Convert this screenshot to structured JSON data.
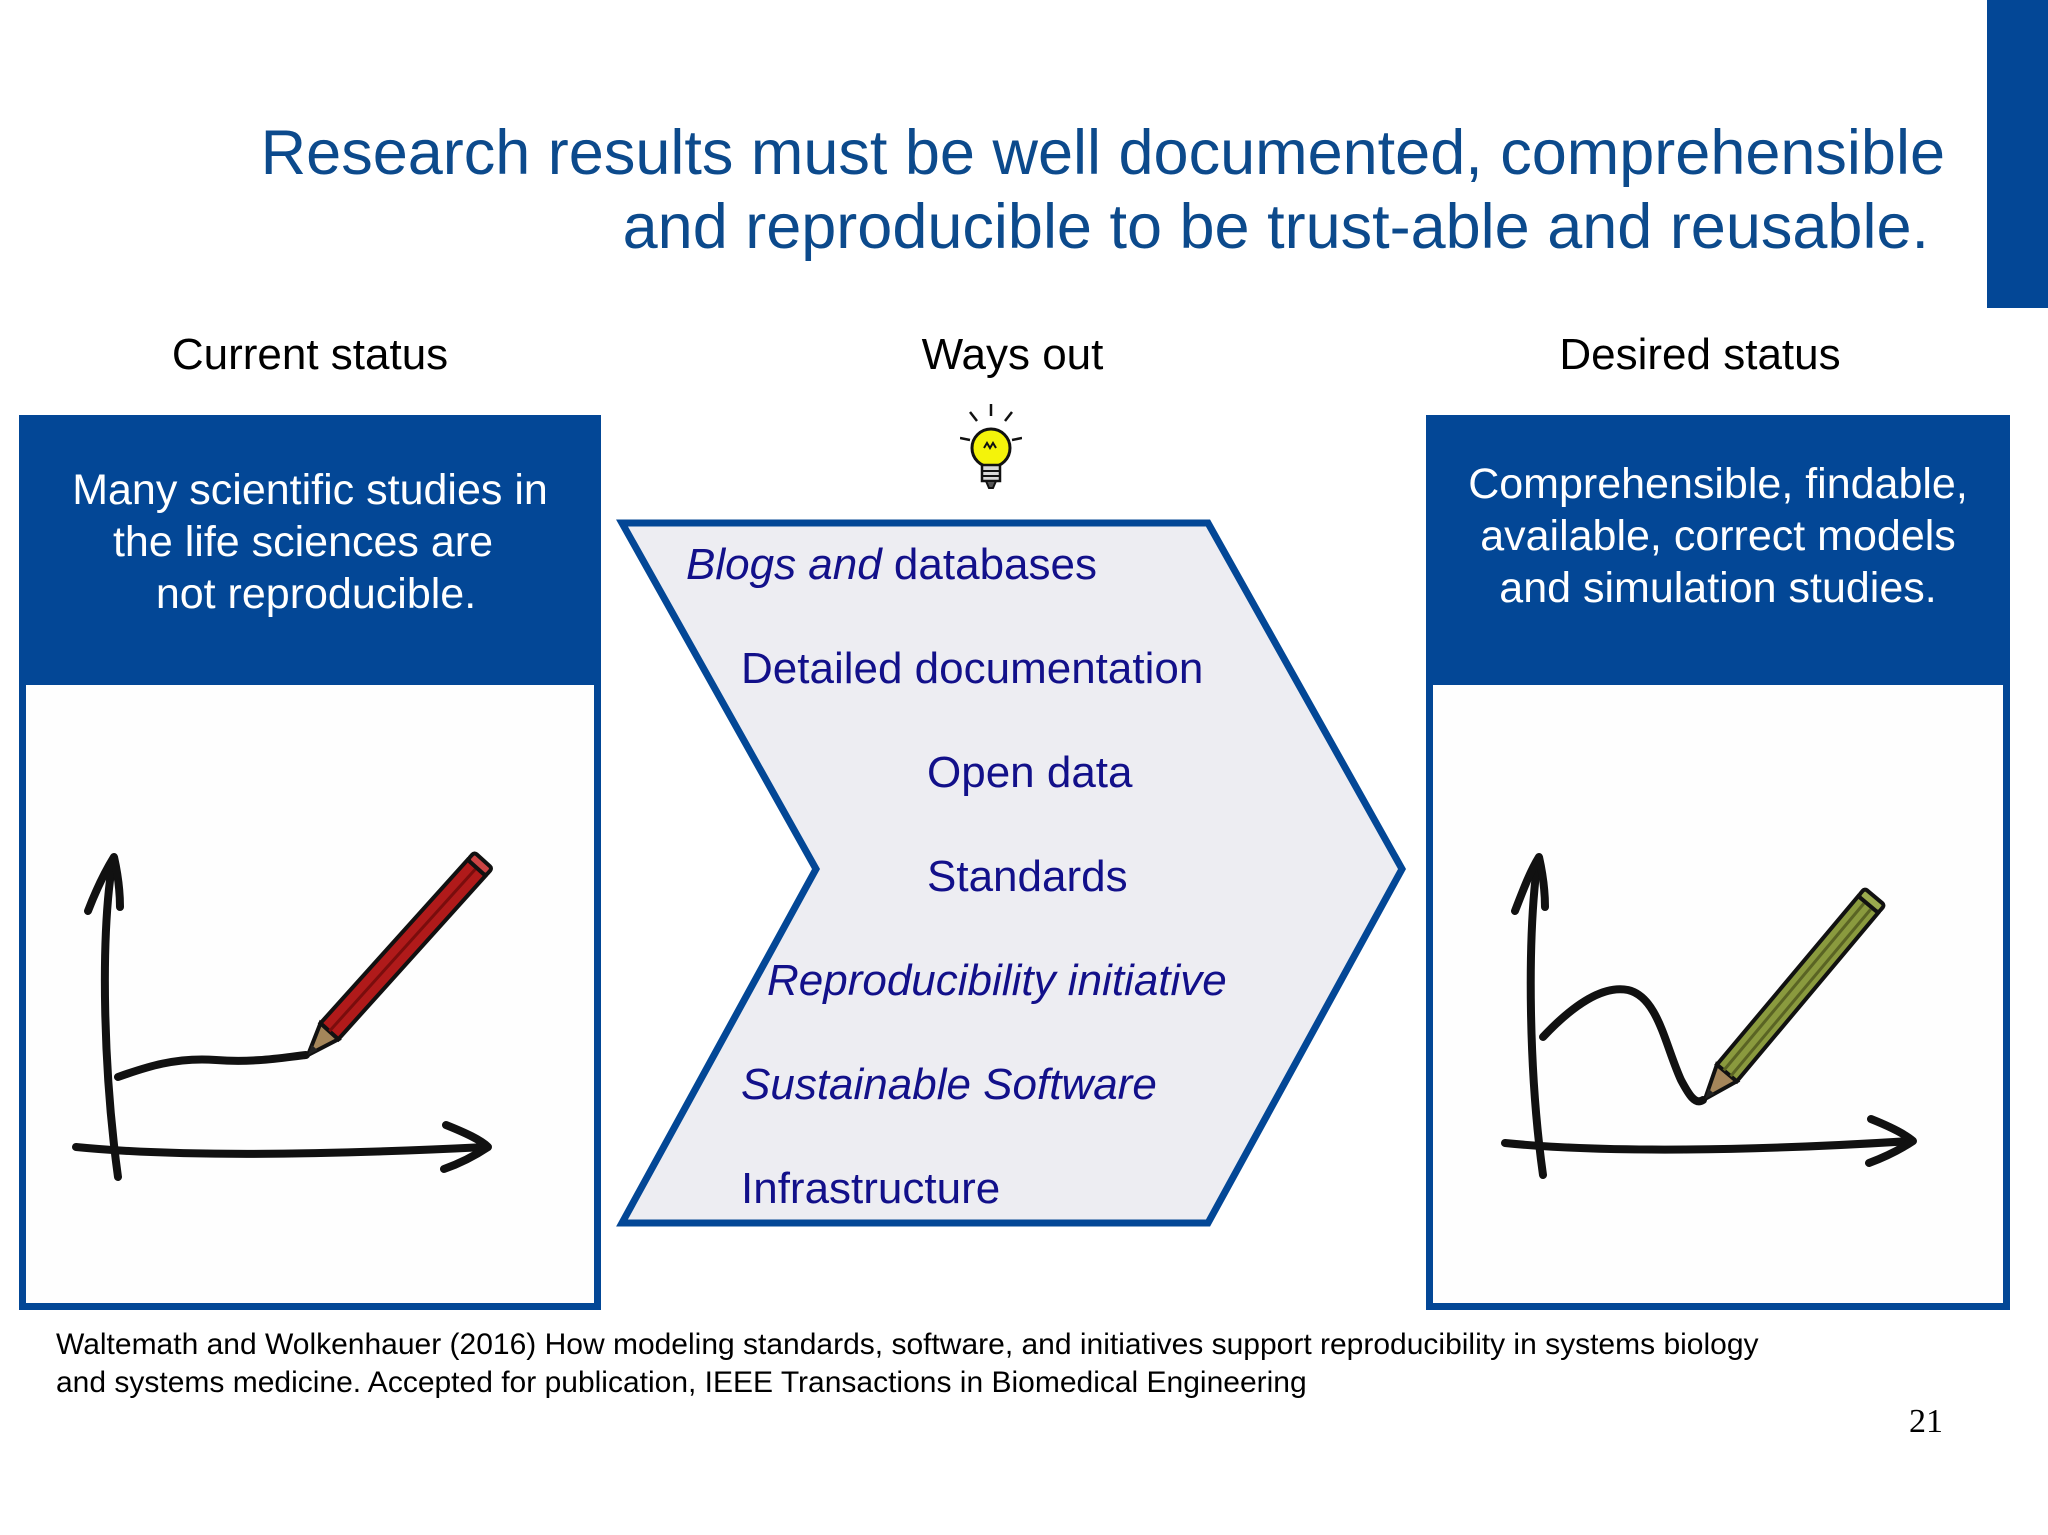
{
  "slide": {
    "title_line1": "Research results must be well documented, comprehensible",
    "title_line2": "and reproducible to be trust-able and reusable.",
    "accent_color": "#034796",
    "text_blue": "#12108a"
  },
  "columns": {
    "current": {
      "heading": "Current status",
      "box_lines": [
        "Many scientific studies in",
        "the life sciences are",
        "not reproducible."
      ],
      "illustration": "flat-line-chart-with-red-pencil-icon"
    },
    "ways_out": {
      "heading": "Ways out",
      "icon": "lightbulb-icon",
      "items": [
        {
          "lead": "Blogs and",
          "rest": " databases"
        },
        {
          "text": "Detailed documentation"
        },
        {
          "text": "Open data"
        },
        {
          "text": "Standards"
        },
        {
          "text": "Reproducibility initiative"
        },
        {
          "text": "Sustainable Software"
        },
        {
          "text": "Infrastructure"
        }
      ]
    },
    "desired": {
      "heading": "Desired status",
      "box_lines": [
        "Comprehensible, findable,",
        "available, correct models",
        "and simulation studies."
      ],
      "illustration": "curved-line-chart-with-green-pencil-icon"
    }
  },
  "citation": {
    "line1": "Waltemath and Wolkenhauer (2016) How modeling standards, software, and initiatives support reproducibility in systems biology",
    "line2": "and systems medicine. Accepted for publication, IEEE Transactions in Biomedical Engineering"
  },
  "page_number": "21"
}
